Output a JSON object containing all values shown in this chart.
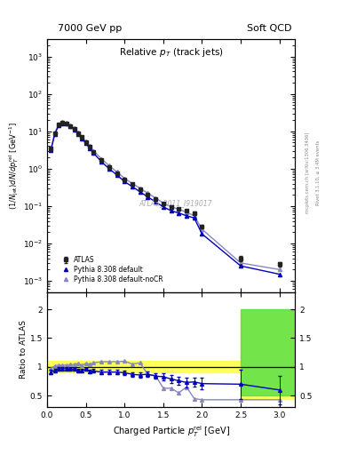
{
  "title_left": "7000 GeV pp",
  "title_right": "Soft QCD",
  "plot_title": "Relative p_{T} (track jets)",
  "ylabel_main": "(1/N_{jet})dN/dp^{rel}_{T} [GeV^{-1}]",
  "ylabel_ratio": "Ratio to ATLAS",
  "xlabel": "Charged Particle p^{rel}_{T} [GeV]",
  "right_label1": "Rivet 3.1.10, ≥ 3.4M events",
  "right_label2": "mcplots.cern.ch [arXiv:1306.3436]",
  "watermark": "ATLAS_2011_I919017",
  "atlas_x": [
    0.05,
    0.1,
    0.15,
    0.2,
    0.25,
    0.3,
    0.35,
    0.4,
    0.45,
    0.5,
    0.55,
    0.6,
    0.7,
    0.8,
    0.9,
    1.0,
    1.1,
    1.2,
    1.3,
    1.4,
    1.5,
    1.6,
    1.7,
    1.8,
    1.9,
    2.0,
    2.5,
    3.0
  ],
  "atlas_y": [
    3.5,
    9.0,
    15.0,
    17.0,
    16.5,
    14.0,
    11.5,
    9.0,
    7.0,
    5.0,
    3.8,
    2.8,
    1.7,
    1.1,
    0.75,
    0.5,
    0.38,
    0.28,
    0.2,
    0.155,
    0.115,
    0.095,
    0.085,
    0.075,
    0.065,
    0.028,
    0.004,
    0.0028
  ],
  "atlas_yerr": [
    0.3,
    0.5,
    0.8,
    0.9,
    0.9,
    0.7,
    0.6,
    0.5,
    0.4,
    0.3,
    0.2,
    0.15,
    0.1,
    0.07,
    0.05,
    0.03,
    0.025,
    0.018,
    0.013,
    0.01,
    0.008,
    0.007,
    0.006,
    0.005,
    0.005,
    0.003,
    0.0006,
    0.0004
  ],
  "pydef_x": [
    0.05,
    0.1,
    0.15,
    0.2,
    0.25,
    0.3,
    0.35,
    0.4,
    0.45,
    0.5,
    0.55,
    0.6,
    0.7,
    0.8,
    0.9,
    1.0,
    1.1,
    1.2,
    1.3,
    1.4,
    1.5,
    1.6,
    1.7,
    1.8,
    1.9,
    2.0,
    2.5,
    3.0
  ],
  "pydef_y": [
    3.2,
    8.5,
    14.5,
    16.5,
    16.0,
    13.5,
    11.0,
    8.5,
    6.5,
    4.8,
    3.5,
    2.6,
    1.55,
    1.0,
    0.68,
    0.45,
    0.33,
    0.24,
    0.175,
    0.13,
    0.095,
    0.075,
    0.065,
    0.055,
    0.048,
    0.018,
    0.0025,
    0.0015
  ],
  "pynocr_x": [
    0.05,
    0.1,
    0.15,
    0.2,
    0.25,
    0.3,
    0.35,
    0.4,
    0.45,
    0.5,
    0.55,
    0.6,
    0.7,
    0.8,
    0.9,
    1.0,
    1.1,
    1.2,
    1.3,
    1.4,
    1.5,
    1.6,
    1.7,
    1.8,
    1.9,
    2.0,
    2.5,
    3.0
  ],
  "pynocr_y": [
    3.4,
    9.2,
    15.5,
    17.5,
    17.0,
    14.5,
    12.0,
    9.5,
    7.2,
    5.3,
    4.0,
    3.0,
    1.85,
    1.2,
    0.82,
    0.55,
    0.4,
    0.3,
    0.22,
    0.165,
    0.12,
    0.095,
    0.082,
    0.068,
    0.055,
    0.024,
    0.003,
    0.002
  ],
  "rdef_x": [
    0.05,
    0.1,
    0.15,
    0.2,
    0.25,
    0.3,
    0.35,
    0.4,
    0.45,
    0.5,
    0.55,
    0.6,
    0.7,
    0.8,
    0.9,
    1.0,
    1.1,
    1.2,
    1.3,
    1.4,
    1.5,
    1.6,
    1.7,
    1.8,
    1.9,
    2.0,
    2.5,
    3.0
  ],
  "rdef_y": [
    0.91,
    0.94,
    0.97,
    0.97,
    0.97,
    0.96,
    0.96,
    0.94,
    0.93,
    0.96,
    0.92,
    0.93,
    0.91,
    0.91,
    0.91,
    0.9,
    0.87,
    0.86,
    0.875,
    0.84,
    0.83,
    0.79,
    0.76,
    0.73,
    0.74,
    0.71,
    0.7,
    0.6
  ],
  "rdef_yerr": [
    0.04,
    0.03,
    0.03,
    0.03,
    0.03,
    0.03,
    0.03,
    0.03,
    0.03,
    0.03,
    0.03,
    0.03,
    0.04,
    0.04,
    0.04,
    0.04,
    0.04,
    0.05,
    0.05,
    0.05,
    0.06,
    0.07,
    0.07,
    0.08,
    0.08,
    0.1,
    0.25,
    0.25
  ],
  "rnocr_x": [
    0.05,
    0.1,
    0.15,
    0.2,
    0.25,
    0.3,
    0.35,
    0.4,
    0.45,
    0.5,
    0.55,
    0.6,
    0.7,
    0.8,
    0.9,
    1.0,
    1.1,
    1.2,
    1.3,
    1.4,
    1.5,
    1.6,
    1.7,
    1.8,
    1.9,
    2.0,
    2.5,
    3.0
  ],
  "rnocr_y": [
    0.97,
    1.02,
    1.03,
    1.03,
    1.03,
    1.04,
    1.04,
    1.06,
    1.03,
    1.06,
    1.05,
    1.07,
    1.09,
    1.09,
    1.09,
    1.1,
    1.05,
    1.07,
    0.87,
    0.85,
    0.63,
    0.63,
    0.55,
    0.65,
    0.45,
    0.43,
    0.43,
    0.43
  ],
  "color_atlas": "#222222",
  "color_pydef": "#0000bb",
  "color_pynocr": "#8888bb",
  "color_yellow": "#ffff44",
  "color_green": "#44dd44",
  "xlim": [
    0.0,
    3.2
  ],
  "ylim_main": [
    0.0005,
    3000
  ],
  "ylim_ratio": [
    0.3,
    2.3
  ],
  "yticks_ratio": [
    0.5,
    1.0,
    1.5,
    2.0
  ]
}
